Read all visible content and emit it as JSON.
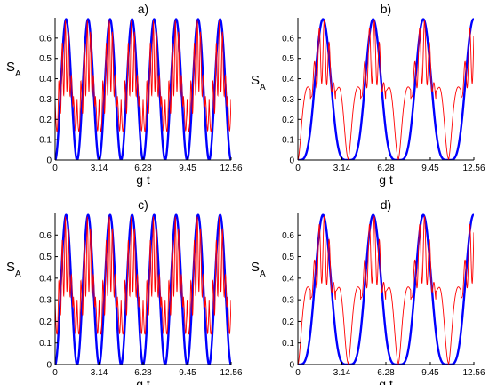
{
  "chart_data": [
    {
      "type": "line",
      "title": "a)",
      "xlabel": "g t",
      "ylabel": "S",
      "ylabel_sub": "A",
      "xlim": [
        0,
        12.56
      ],
      "ylim": [
        0,
        0.7
      ],
      "xticks": [
        0,
        3.14,
        6.28,
        9.45,
        12.56
      ],
      "xtick_labels": [
        "0",
        "3.14",
        "6.28",
        "9.45",
        "12.56"
      ],
      "yticks": [
        0,
        0.1,
        0.2,
        0.3,
        0.4,
        0.5,
        0.6
      ],
      "ytick_labels": [
        "0",
        "0.1",
        "0.2",
        "0.3",
        "0.4",
        "0.5",
        "0.6"
      ],
      "grid": false,
      "series": [
        {
          "color": "#0000ff",
          "style": "solid-thick",
          "period": 1.57,
          "peak": 0.693,
          "profile": "sin2"
        },
        {
          "color": "#ff0000",
          "style": "solid-thin",
          "period": 1.57,
          "peak": 0.69,
          "profile": "oscillating",
          "baseline": 0.3
        }
      ]
    },
    {
      "type": "line",
      "title": "b)",
      "xlabel": "g t",
      "ylabel": "S",
      "ylabel_sub": "A",
      "xlim": [
        0,
        12.56
      ],
      "ylim": [
        0,
        0.7
      ],
      "xticks": [
        0,
        3.14,
        6.28,
        9.45,
        12.56
      ],
      "xtick_labels": [
        "0",
        "3.14",
        "6.28",
        "9.45",
        "12.56"
      ],
      "yticks": [
        0,
        0.1,
        0.2,
        0.3,
        0.4,
        0.5,
        0.6
      ],
      "ytick_labels": [
        "0",
        "0.1",
        "0.2",
        "0.3",
        "0.4",
        "0.5",
        "0.6"
      ],
      "grid": false,
      "series": [
        {
          "color": "#0000ff",
          "style": "solid-thick",
          "period": 3.58,
          "peak": 0.693,
          "profile": "pulse"
        },
        {
          "color": "#ff0000",
          "style": "solid-thin",
          "period": 3.58,
          "peak": 0.69,
          "profile": "pulse-plateau",
          "plateau": 0.35
        }
      ]
    },
    {
      "type": "line",
      "title": "c)",
      "xlabel": "g t",
      "ylabel": "S",
      "ylabel_sub": "A",
      "xlim": [
        0,
        12.56
      ],
      "ylim": [
        0,
        0.7
      ],
      "xticks": [
        0,
        3.14,
        6.28,
        9.45,
        12.56
      ],
      "xtick_labels": [
        "0",
        "3.14",
        "6.28",
        "9.45",
        "12.56"
      ],
      "yticks": [
        0,
        0.1,
        0.2,
        0.3,
        0.4,
        0.5,
        0.6
      ],
      "ytick_labels": [
        "0",
        "0.1",
        "0.2",
        "0.3",
        "0.4",
        "0.5",
        "0.6"
      ],
      "grid": false,
      "series": [
        {
          "color": "#0000ff",
          "style": "solid-thick",
          "period": 1.57,
          "peak": 0.693,
          "profile": "sin2"
        },
        {
          "color": "#ff0000",
          "style": "solid-thin",
          "period": 1.57,
          "peak": 0.69,
          "profile": "oscillating",
          "baseline": 0.3
        }
      ]
    },
    {
      "type": "line",
      "title": "d)",
      "xlabel": "g t",
      "ylabel": "S",
      "ylabel_sub": "A",
      "xlim": [
        0,
        12.56
      ],
      "ylim": [
        0,
        0.7
      ],
      "xticks": [
        0,
        3.14,
        6.28,
        9.45,
        12.56
      ],
      "xtick_labels": [
        "0",
        "3.14",
        "6.28",
        "9.45",
        "12.56"
      ],
      "yticks": [
        0,
        0.1,
        0.2,
        0.3,
        0.4,
        0.5,
        0.6
      ],
      "ytick_labels": [
        "0",
        "0.1",
        "0.2",
        "0.3",
        "0.4",
        "0.5",
        "0.6"
      ],
      "grid": false,
      "series": [
        {
          "color": "#0000ff",
          "style": "solid-thick",
          "period": 3.58,
          "peak": 0.693,
          "profile": "pulse"
        },
        {
          "color": "#ff0000",
          "style": "solid-thin",
          "period": 3.58,
          "peak": 0.69,
          "profile": "pulse-plateau",
          "plateau": 0.35
        }
      ]
    }
  ]
}
